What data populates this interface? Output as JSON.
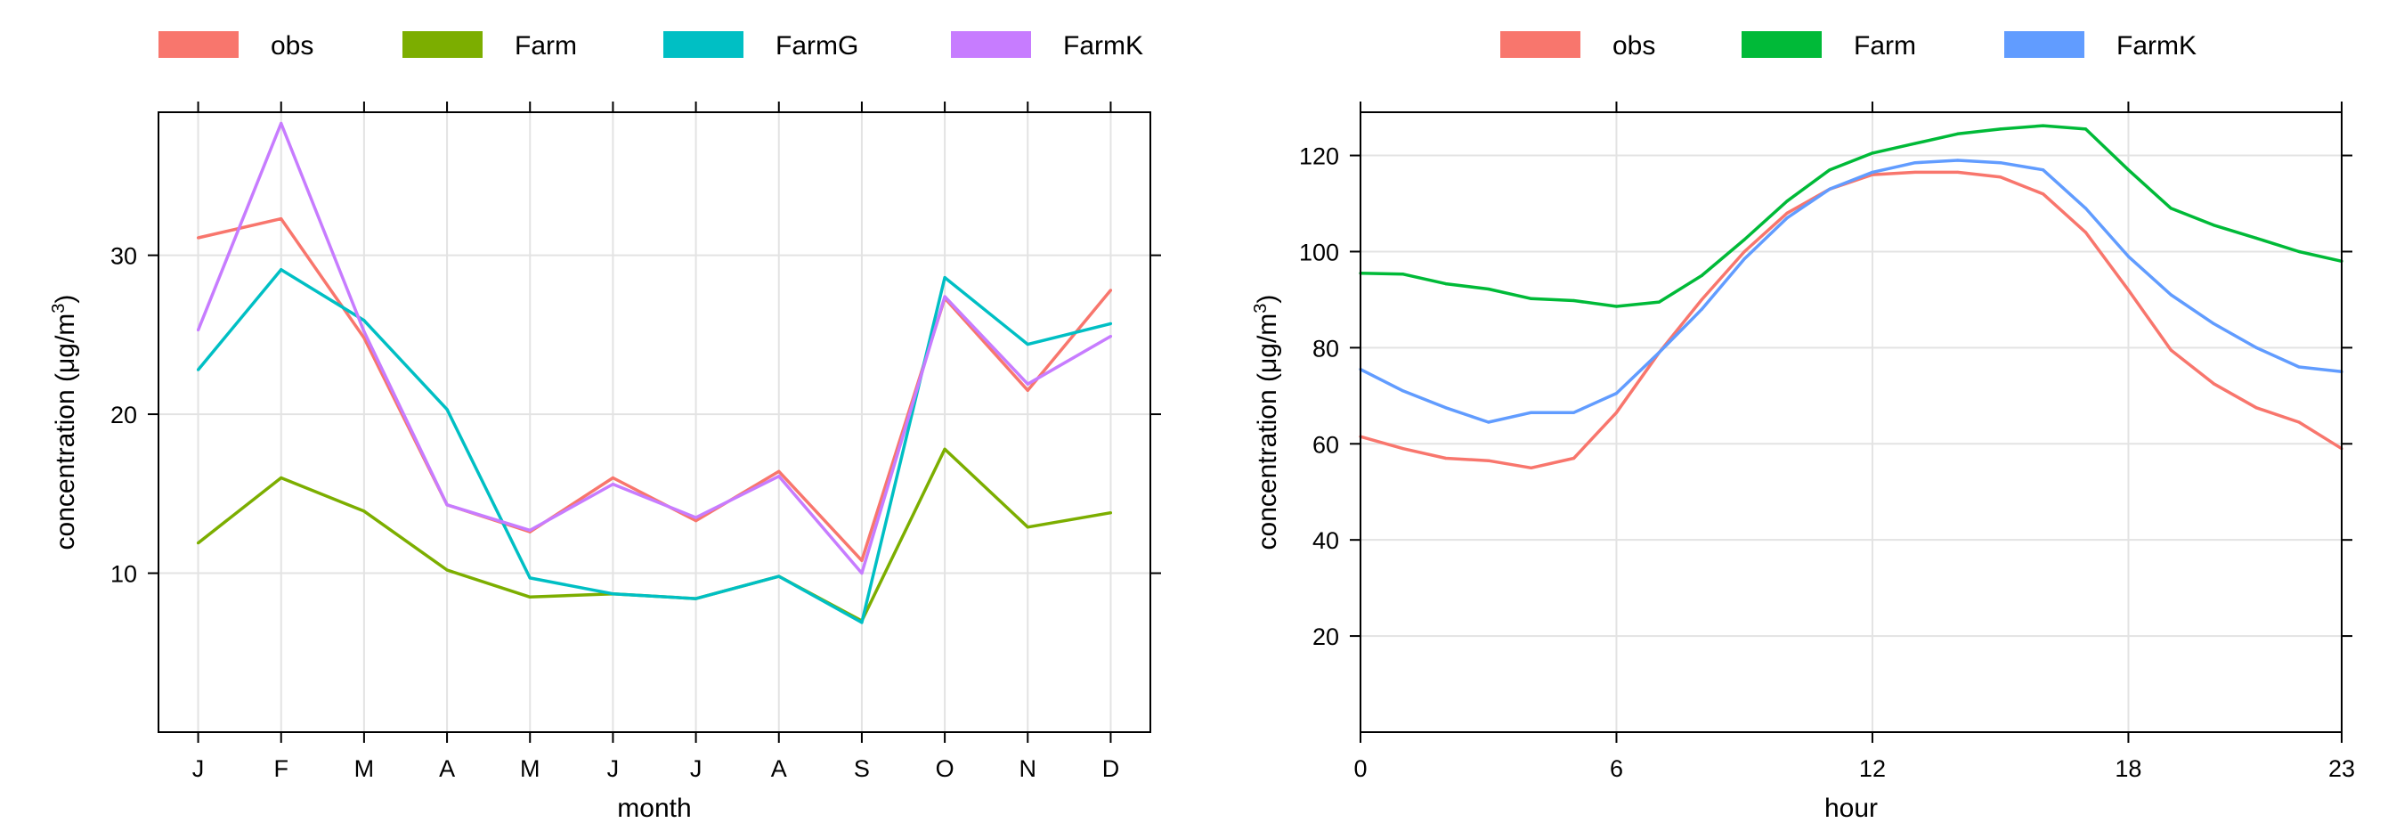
{
  "chart_data": [
    {
      "type": "line",
      "title": "",
      "xlabel": "month",
      "ylabel": "concentration (μg/m³)",
      "ylabel_parts": {
        "main": "concentration (μg/m",
        "sup": "3",
        "tail": ")"
      },
      "categories": [
        "J",
        "F",
        "M",
        "A",
        "M",
        "J",
        "J",
        "A",
        "S",
        "O",
        "N",
        "D"
      ],
      "ylim": [
        0,
        39
      ],
      "yticks": [
        10,
        20,
        30
      ],
      "grid": true,
      "legend_position": "top",
      "series": [
        {
          "name": "obs",
          "color": "#F8766D",
          "values": [
            31.1,
            32.3,
            24.8,
            14.3,
            12.6,
            16.0,
            13.3,
            16.4,
            10.8,
            27.3,
            21.5,
            27.8
          ]
        },
        {
          "name": "Farm",
          "color": "#7CAE00",
          "values": [
            11.9,
            16.0,
            13.9,
            10.2,
            8.5,
            8.7,
            8.4,
            9.8,
            7.0,
            17.8,
            12.9,
            13.8
          ]
        },
        {
          "name": "FarmG",
          "color": "#00BFC4",
          "values": [
            22.8,
            29.1,
            25.9,
            20.3,
            9.7,
            8.7,
            8.4,
            9.8,
            6.9,
            28.6,
            24.4,
            25.7
          ]
        },
        {
          "name": "FarmK",
          "color": "#C77CFF",
          "values": [
            25.3,
            38.3,
            25.2,
            14.3,
            12.7,
            15.6,
            13.5,
            16.1,
            10.0,
            27.4,
            21.9,
            24.9
          ]
        }
      ]
    },
    {
      "type": "line",
      "title": "",
      "xlabel": "hour",
      "ylabel": "concentration (μg/m³)",
      "ylabel_parts": {
        "main": "concentration (μg/m",
        "sup": "3",
        "tail": ")"
      },
      "x": [
        0,
        1,
        2,
        3,
        4,
        5,
        6,
        7,
        8,
        9,
        10,
        11,
        12,
        13,
        14,
        15,
        16,
        17,
        18,
        19,
        20,
        21,
        22,
        23
      ],
      "xlim": [
        0,
        23
      ],
      "xticks": [
        0,
        6,
        12,
        18,
        23
      ],
      "ylim": [
        0,
        129
      ],
      "yticks": [
        20,
        40,
        60,
        80,
        100,
        120
      ],
      "grid": true,
      "legend_position": "top",
      "series": [
        {
          "name": "obs",
          "color": "#F8766D",
          "values": [
            61.5,
            59.0,
            57.0,
            56.5,
            55.0,
            57.0,
            66.5,
            79.0,
            90.0,
            100.0,
            108.0,
            113.0,
            116.0,
            116.5,
            116.5,
            115.5,
            112.0,
            104.0,
            92.0,
            79.5,
            72.5,
            67.5,
            64.5,
            59.0
          ]
        },
        {
          "name": "Farm",
          "color": "#00BA38",
          "values": [
            95.5,
            95.3,
            93.3,
            92.2,
            90.2,
            89.8,
            88.6,
            89.5,
            95.0,
            102.5,
            110.5,
            117.0,
            120.5,
            122.5,
            124.5,
            125.5,
            126.2,
            125.5,
            117.0,
            109.0,
            105.5,
            102.8,
            100.0,
            98.0
          ]
        },
        {
          "name": "FarmK",
          "color": "#619CFF",
          "values": [
            75.5,
            71.0,
            67.5,
            64.5,
            66.5,
            66.5,
            70.5,
            79.0,
            88.0,
            98.5,
            107.0,
            113.0,
            116.5,
            118.5,
            119.0,
            118.5,
            117.0,
            109.0,
            99.0,
            91.0,
            85.0,
            80.0,
            76.0,
            75.0
          ]
        }
      ]
    }
  ]
}
